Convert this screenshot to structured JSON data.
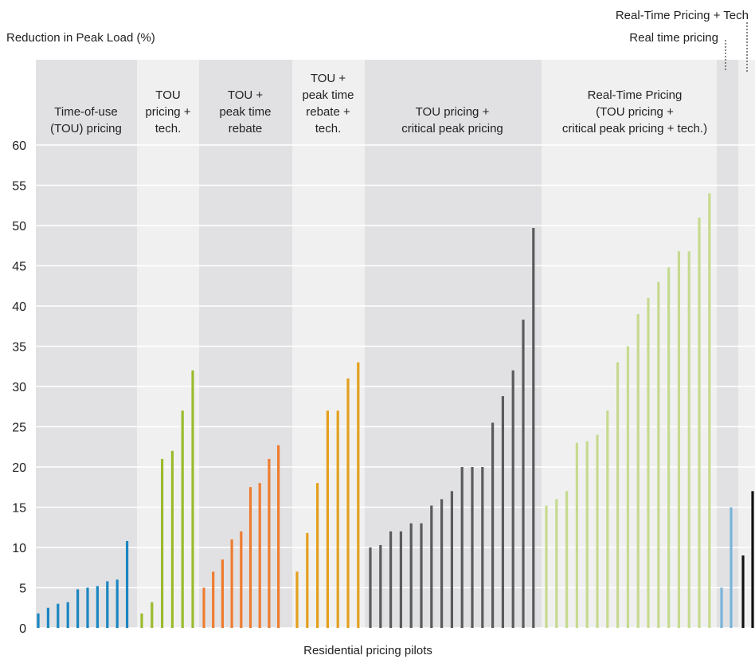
{
  "chart_data": {
    "type": "bar",
    "ylabel": "Reduction in Peak Load (%)",
    "xlabel": "Residential pricing pilots",
    "ylim": [
      0,
      60
    ],
    "yticks": [
      0,
      5,
      10,
      15,
      20,
      25,
      30,
      35,
      40,
      45,
      50,
      55,
      60
    ],
    "grid": true,
    "groups": [
      {
        "label": "Time-of-use\n(TOU) pricing",
        "color": "#1a86c1",
        "background": "#e1e1e3",
        "values": [
          1.8,
          2.5,
          3.0,
          3.2,
          4.8,
          5.0,
          5.2,
          5.8,
          6.0,
          10.8
        ]
      },
      {
        "label": "TOU\npricing +\ntech.",
        "color": "#9bbb2e",
        "background": "#f0f0f0",
        "values": [
          1.8,
          3.2,
          21.0,
          22.0,
          27.0,
          32.0
        ]
      },
      {
        "label": "TOU +\npeak time\nrebate",
        "color": "#ee7c30",
        "background": "#e1e1e3",
        "values": [
          5.0,
          7.0,
          8.5,
          11.0,
          12.0,
          17.5,
          18.0,
          21.0,
          22.7
        ]
      },
      {
        "label": "TOU +\npeak time\nrebate +\ntech.",
        "color": "#e3a01d",
        "background": "#f0f0f0",
        "values": [
          7.0,
          11.8,
          18.0,
          27.0,
          27.0,
          31.0,
          33.0
        ]
      },
      {
        "label": "TOU pricing +\ncritical peak pricing",
        "color": "#5a5b5d",
        "background": "#e1e1e3",
        "values": [
          10.0,
          10.3,
          12.0,
          12.0,
          13.0,
          13.0,
          15.2,
          16.0,
          17.0,
          20.0,
          20.0,
          20.0,
          25.5,
          28.8,
          32.0,
          38.3,
          49.7
        ]
      },
      {
        "label": "Real-Time Pricing\n(TOU pricing +\ncritical peak pricing + tech.)",
        "color": "#c6da8f",
        "background": "#f0f0f0",
        "values": [
          15.2,
          16.0,
          17.0,
          23.0,
          23.2,
          24.0,
          27.0,
          33.0,
          35.0,
          39.0,
          41.0,
          43.0,
          44.8,
          46.8,
          46.8,
          51.0,
          54.0
        ]
      },
      {
        "label": "Real time pricing",
        "color": "#7ab4d9",
        "background": "#e1e1e3",
        "values": [
          5.0,
          15.0
        ]
      },
      {
        "label": "Real-Time Pricing  + Tech",
        "color": "#111111",
        "background": "#f0f0f0",
        "values": [
          9.0,
          17.0
        ]
      }
    ]
  }
}
